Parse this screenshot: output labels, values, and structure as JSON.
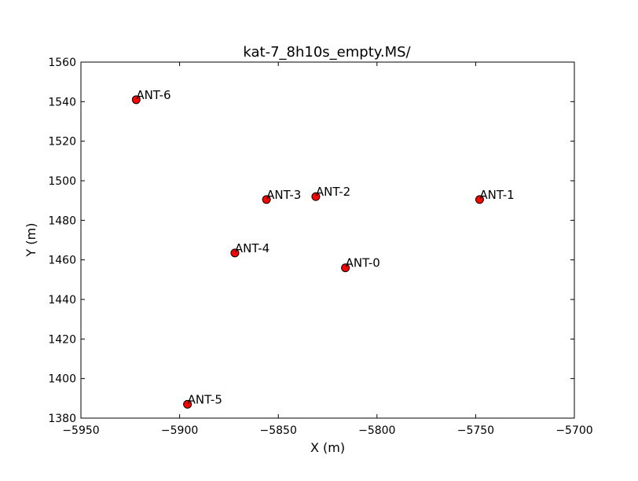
{
  "chart_data": {
    "type": "scatter",
    "title": "kat-7_8h10s_empty.MS/",
    "xlabel": "X (m)",
    "ylabel": "Y (m)",
    "xlim": [
      -5950,
      -5700
    ],
    "ylim": [
      1380,
      1560
    ],
    "xticks": [
      -5950,
      -5900,
      -5850,
      -5800,
      -5750,
      -5700
    ],
    "yticks": [
      1380,
      1400,
      1420,
      1440,
      1460,
      1480,
      1500,
      1520,
      1540,
      1560
    ],
    "xtick_labels": [
      "−5950",
      "−5900",
      "−5850",
      "−5800",
      "−5750",
      "−5700"
    ],
    "ytick_labels": [
      "1380",
      "1400",
      "1420",
      "1440",
      "1460",
      "1480",
      "1500",
      "1520",
      "1540",
      "1560"
    ],
    "grid": false,
    "marker_color": "#ff0000",
    "points": [
      {
        "label": "ANT-0",
        "x": -5816,
        "y": 1456
      },
      {
        "label": "ANT-1",
        "x": -5748,
        "y": 1490.5
      },
      {
        "label": "ANT-2",
        "x": -5831,
        "y": 1492
      },
      {
        "label": "ANT-3",
        "x": -5856,
        "y": 1490.5
      },
      {
        "label": "ANT-4",
        "x": -5872,
        "y": 1463.5
      },
      {
        "label": "ANT-5",
        "x": -5896,
        "y": 1387
      },
      {
        "label": "ANT-6",
        "x": -5922,
        "y": 1541
      }
    ]
  }
}
